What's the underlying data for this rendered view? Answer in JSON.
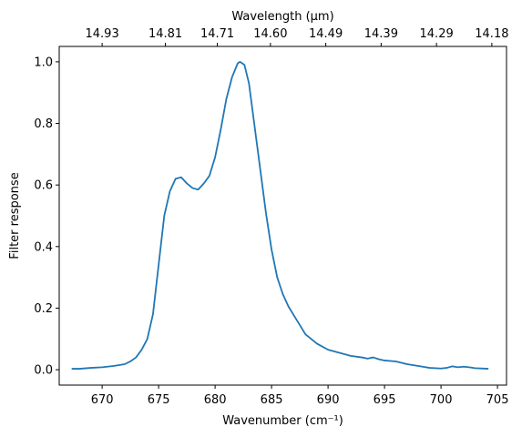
{
  "chart_data": {
    "type": "line",
    "xlabel": "Wavenumber (cm⁻¹)",
    "ylabel": "Filter response",
    "top_xlabel": "Wavelength (μm)",
    "xlim": [
      666.2,
      705.8
    ],
    "ylim": [
      -0.05,
      1.05
    ],
    "x_ticks": [
      670,
      675,
      680,
      685,
      690,
      695,
      700,
      705
    ],
    "y_ticks": [
      0.0,
      0.2,
      0.4,
      0.6,
      0.8,
      1.0
    ],
    "top_ticks": [
      {
        "wavenumber": 670.0,
        "label": "14.93"
      },
      {
        "wavenumber": 675.6,
        "label": "14.81"
      },
      {
        "wavenumber": 680.2,
        "label": "14.71"
      },
      {
        "wavenumber": 684.9,
        "label": "14.60"
      },
      {
        "wavenumber": 689.8,
        "label": "14.49"
      },
      {
        "wavenumber": 694.7,
        "label": "14.39"
      },
      {
        "wavenumber": 699.6,
        "label": "14.29"
      },
      {
        "wavenumber": 704.5,
        "label": "14.18"
      }
    ],
    "grid": false,
    "line_color": "#1f77b4",
    "series": [
      {
        "x": [
          667.3,
          668.0,
          669.0,
          670.0,
          671.0,
          672.0,
          672.5,
          673.0,
          673.5,
          674.0,
          674.5,
          675.0,
          675.5,
          676.0,
          676.5,
          677.0,
          677.5,
          678.0,
          678.5,
          679.0,
          679.5,
          680.0,
          680.5,
          681.0,
          681.5,
          682.0,
          682.2,
          682.6,
          683.0,
          683.5,
          684.0,
          684.5,
          685.0,
          685.5,
          686.0,
          686.5,
          687.0,
          687.5,
          688.0,
          689.0,
          690.0,
          691.0,
          692.0,
          693.0,
          693.5,
          694.0,
          694.5,
          695.0,
          696.0,
          697.0,
          698.0,
          699.0,
          700.0,
          700.5,
          701.0,
          701.5,
          702.0,
          702.5,
          703.0,
          704.2
        ],
        "y": [
          0.003,
          0.003,
          0.006,
          0.008,
          0.012,
          0.018,
          0.027,
          0.04,
          0.065,
          0.1,
          0.18,
          0.34,
          0.5,
          0.58,
          0.62,
          0.625,
          0.605,
          0.59,
          0.585,
          0.605,
          0.63,
          0.69,
          0.78,
          0.88,
          0.95,
          0.995,
          1.0,
          0.99,
          0.93,
          0.79,
          0.65,
          0.51,
          0.39,
          0.3,
          0.245,
          0.205,
          0.175,
          0.145,
          0.115,
          0.085,
          0.065,
          0.055,
          0.045,
          0.04,
          0.036,
          0.04,
          0.034,
          0.03,
          0.027,
          0.018,
          0.012,
          0.006,
          0.004,
          0.006,
          0.011,
          0.008,
          0.01,
          0.008,
          0.005,
          0.003
        ]
      }
    ]
  }
}
